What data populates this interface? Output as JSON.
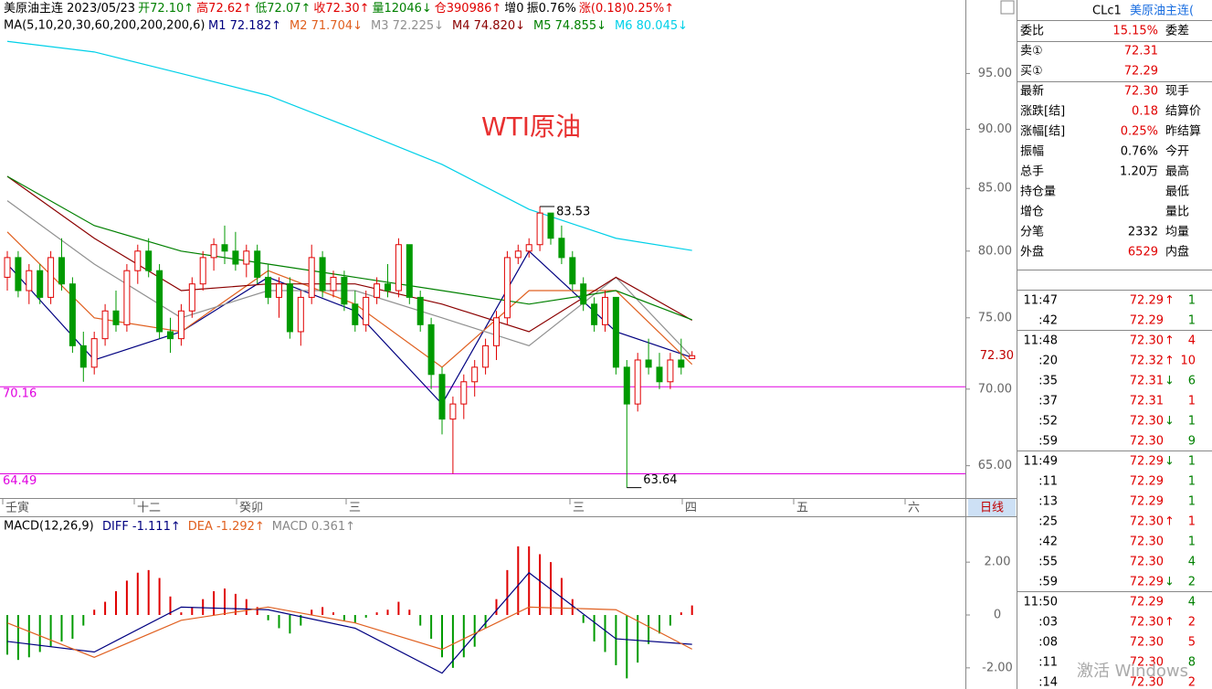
{
  "header": {
    "segments": [
      {
        "text": "美原油主连  2023/05/23",
        "color": "#000000"
      },
      {
        "text": "开72.10↑",
        "color": "#008000"
      },
      {
        "text": "高72.62↑",
        "color": "#e00000"
      },
      {
        "text": "低72.07↑",
        "color": "#008000"
      },
      {
        "text": "收72.30↑",
        "color": "#e00000"
      },
      {
        "text": "量12046↓",
        "color": "#008000"
      },
      {
        "text": "仓390986↑",
        "color": "#e00000"
      },
      {
        "text": "增0",
        "color": "#000000"
      },
      {
        "text": "振0.76%",
        "color": "#000000"
      },
      {
        "text": "涨(0.18)0.25%↑",
        "color": "#e00000"
      }
    ],
    "ma_title": "MA(5,10,20,30,60,200,200,200,6)"
  },
  "chart_data": {
    "type": "candlestick",
    "annotation": "WTI原油",
    "log": true,
    "ylim": [
      63,
      102
    ],
    "yticks": [
      {
        "value": 95,
        "label": "95.00"
      },
      {
        "value": 90,
        "label": "90.00"
      },
      {
        "value": 85,
        "label": "85.00"
      },
      {
        "value": 80,
        "label": "80.00"
      },
      {
        "value": 75,
        "label": "75.00"
      },
      {
        "value": 70,
        "label": "70.00"
      },
      {
        "value": 65,
        "label": "65.00"
      }
    ],
    "up_color": "#e00000",
    "down_color": "#009a00",
    "ohlc": [
      [
        78,
        80,
        77,
        79.5
      ],
      [
        79.5,
        80,
        76.5,
        77
      ],
      [
        77,
        79,
        76,
        78.5
      ],
      [
        78.5,
        79,
        76,
        76.5
      ],
      [
        76.5,
        80,
        76,
        79.5
      ],
      [
        79.5,
        81,
        77,
        77.5
      ],
      [
        77.5,
        78,
        72.5,
        73
      ],
      [
        73,
        74,
        70.5,
        71.5
      ],
      [
        71.5,
        74,
        71,
        73.5
      ],
      [
        73.5,
        76,
        73,
        75.5
      ],
      [
        75.5,
        77,
        74,
        74.5
      ],
      [
        74.5,
        79,
        74,
        78.5
      ],
      [
        78.5,
        80.5,
        77.5,
        80
      ],
      [
        80,
        81,
        78,
        78.5
      ],
      [
        78.5,
        79,
        73.5,
        74
      ],
      [
        74,
        75,
        72.5,
        73.5
      ],
      [
        73.5,
        76,
        73,
        75.5
      ],
      [
        75.5,
        78,
        75,
        77.5
      ],
      [
        77.5,
        80,
        77,
        79.5
      ],
      [
        79.5,
        81,
        78.5,
        80.5
      ],
      [
        80.5,
        82,
        79,
        80
      ],
      [
        80,
        81.5,
        78.5,
        79
      ],
      [
        79,
        80.5,
        78,
        80
      ],
      [
        80,
        80.5,
        77.5,
        78
      ],
      [
        78,
        79,
        76,
        76.5
      ],
      [
        76.5,
        78,
        75,
        77.5
      ],
      [
        77.5,
        78,
        73.5,
        74
      ],
      [
        74,
        77,
        73,
        76.5
      ],
      [
        76.5,
        80.5,
        76,
        79.5
      ],
      [
        79.5,
        80,
        76.5,
        77
      ],
      [
        77,
        78.5,
        76.5,
        78
      ],
      [
        78,
        78.5,
        75.5,
        76
      ],
      [
        76,
        77,
        74,
        74.5
      ],
      [
        74.5,
        77,
        74,
        76.5
      ],
      [
        76.5,
        78,
        76,
        77.5
      ],
      [
        77.5,
        79,
        76.5,
        77
      ],
      [
        77,
        81,
        76.5,
        80.5
      ],
      [
        80.5,
        80.5,
        76,
        76.5
      ],
      [
        76.5,
        77,
        74,
        74.5
      ],
      [
        74.5,
        75,
        70,
        71
      ],
      [
        71,
        71.5,
        67,
        68
      ],
      [
        68,
        69.5,
        64.5,
        69
      ],
      [
        69,
        71,
        68,
        70.5
      ],
      [
        70.5,
        72,
        69.5,
        71.5
      ],
      [
        71.5,
        73.5,
        71,
        73
      ],
      [
        73,
        75.5,
        72,
        75
      ],
      [
        75,
        80,
        74.5,
        79.5
      ],
      [
        79.5,
        80.5,
        79,
        80
      ],
      [
        80,
        81,
        79.5,
        80.5
      ],
      [
        80.5,
        83.53,
        80,
        83
      ],
      [
        83,
        83,
        80.5,
        81
      ],
      [
        81,
        82,
        79,
        79.5
      ],
      [
        79.5,
        80,
        77,
        77.5
      ],
      [
        77.5,
        78,
        75.5,
        76
      ],
      [
        76,
        76.5,
        74,
        74.5
      ],
      [
        74.5,
        77,
        74,
        76.5
      ],
      [
        76.5,
        76.5,
        71,
        71.5
      ],
      [
        71.5,
        72,
        63.64,
        69
      ],
      [
        69,
        72.5,
        68.5,
        72
      ],
      [
        72,
        73.5,
        71,
        71.5
      ],
      [
        71.5,
        72.5,
        70,
        70.5
      ],
      [
        70.5,
        72.5,
        70,
        72
      ],
      [
        72,
        73.5,
        71,
        71.5
      ],
      [
        72.1,
        72.62,
        72.07,
        72.3
      ]
    ],
    "high_label": "83.53",
    "low_label": "63.64",
    "last_label": "72.30",
    "hlines": [
      {
        "value": 70.16,
        "label": "70.16",
        "color": "#e000e0"
      },
      {
        "value": 64.49,
        "label": "64.49",
        "color": "#e000e0"
      }
    ],
    "ma_index": [
      0,
      8,
      16,
      24,
      32,
      40,
      48,
      56,
      63
    ],
    "series": [
      {
        "name": "M1 72.182↑",
        "color": "#000080",
        "values": [
          79,
          72,
          74,
          78,
          75.5,
          69,
          80,
          74,
          72.18
        ]
      },
      {
        "name": "M2 71.704↓",
        "color": "#e06020",
        "values": [
          81.5,
          75,
          74,
          78.5,
          76,
          71.5,
          77,
          77,
          71.7
        ]
      },
      {
        "name": "M3 72.225↓",
        "color": "#909090",
        "values": [
          84,
          79,
          75,
          77,
          77,
          75,
          73,
          78,
          72.2
        ]
      },
      {
        "name": "M4 74.820↓",
        "color": "#8b0000",
        "values": [
          86,
          81,
          77,
          77.5,
          77.5,
          76,
          74,
          78,
          74.82
        ]
      },
      {
        "name": "M5 74.855↓",
        "color": "#008000",
        "values": [
          86,
          82,
          80,
          79,
          78,
          77,
          76,
          77,
          74.86
        ]
      },
      {
        "name": "M6 80.045↓",
        "color": "#00d0e8",
        "values": [
          98,
          97,
          95,
          93,
          90,
          87,
          83.3,
          81,
          80.05
        ]
      }
    ],
    "date_labels": [
      "壬寅",
      "十二",
      "癸卯",
      "三",
      "三",
      "四",
      "五",
      "六"
    ],
    "period": "日线"
  },
  "macd_data": {
    "type": "macd",
    "title": "MACD(12,26,9)",
    "ylim": [
      -2.8,
      3.7
    ],
    "yticks": [
      {
        "value": 2,
        "label": "2.00"
      },
      0,
      {
        "value": -2,
        "label": "-2.00"
      }
    ],
    "hist": [
      -1.5,
      -1.7,
      -1.6,
      -1.4,
      -1.2,
      -1,
      -0.9,
      -0.4,
      0.2,
      0.5,
      0.9,
      1.3,
      1.6,
      1.7,
      1.4,
      0.7,
      0.1,
      0.3,
      0.6,
      0.9,
      1,
      0.8,
      0.6,
      0.3,
      -0.2,
      -0.5,
      -0.7,
      -0.4,
      0.2,
      0.3,
      0.1,
      -0.2,
      -0.3,
      -0.1,
      0.1,
      0.2,
      0.5,
      0.2,
      -0.4,
      -0.9,
      -1.6,
      -2,
      -1.6,
      -1.2,
      -0.5,
      0.6,
      1.7,
      2.6,
      2.6,
      2.3,
      2,
      1.4,
      0.6,
      -0.3,
      -1,
      -1.4,
      -1.9,
      -2.4,
      -1.8,
      -1.1,
      -0.7,
      -0.4,
      0.1,
      0.361
    ],
    "hist_label": "MACD 0.361↑",
    "hist_color_up": "#e00000",
    "hist_color_down": "#009a00",
    "series": [
      {
        "name": "DIFF -1.111↑",
        "color": "#000080",
        "values": [
          -1,
          -1.4,
          0.3,
          0.2,
          -0.5,
          -2.2,
          1.6,
          -0.9,
          -1.111
        ]
      },
      {
        "name": "DEA -1.292↑",
        "color": "#e06020",
        "values": [
          -0.3,
          -1.6,
          -0.2,
          0.3,
          -0.3,
          -1.3,
          0.3,
          0.2,
          -1.292
        ]
      }
    ]
  },
  "quote": {
    "code": "CLc1",
    "name": "美原油主连(",
    "rows": [
      [
        "委比",
        "15.15%",
        "委差"
      ],
      [
        "卖①",
        "72.31"
      ],
      [
        "买①",
        "72.29"
      ],
      [
        "最新",
        "72.30",
        "现手"
      ],
      [
        "涨跌[结]",
        "0.18",
        "结算价"
      ],
      [
        "涨幅[结]",
        "0.25%",
        "昨结算"
      ],
      [
        "振幅",
        "0.76%",
        "今开"
      ],
      [
        "总手",
        "1.20万",
        "最高"
      ],
      [
        "持仓量",
        "最低"
      ],
      [
        "增仓",
        "量比"
      ],
      [
        "分笔",
        "2332",
        "均量"
      ],
      [
        "外盘",
        "6529",
        "内盘"
      ]
    ],
    "ticks": [
      {
        "time": "11:47",
        "price": "72.29",
        "arrow": "↑",
        "volume": "1",
        "color": "#008000"
      },
      {
        "time": ":42",
        "price": "72.29",
        "volume": "1",
        "color": "#008000"
      },
      {
        "time": "11:48",
        "price": "72.30",
        "arrow": "↑",
        "volume": "4",
        "color": "#e00000"
      },
      {
        "time": ":20",
        "price": "72.32",
        "arrow": "↑",
        "volume": "10",
        "color": "#e00000"
      },
      {
        "time": ":35",
        "price": "72.31",
        "arrow": "↓",
        "volume": "6",
        "color": "#008000"
      },
      {
        "time": ":37",
        "price": "72.31",
        "volume": "1",
        "color": "#e00000"
      },
      {
        "time": ":52",
        "price": "72.30",
        "arrow": "↓",
        "volume": "1",
        "color": "#008000"
      },
      {
        "time": ":59",
        "price": "72.30",
        "volume": "9",
        "color": "#008000"
      },
      {
        "time": "11:49",
        "price": "72.29",
        "arrow": "↓",
        "volume": "1",
        "color": "#008000"
      },
      {
        "time": ":11",
        "price": "72.29",
        "volume": "1",
        "color": "#008000"
      },
      {
        "time": ":13",
        "price": "72.29",
        "volume": "1",
        "color": "#008000"
      },
      {
        "time": ":25",
        "price": "72.30",
        "arrow": "↑",
        "volume": "1",
        "color": "#e00000"
      },
      {
        "time": ":42",
        "price": "72.30",
        "volume": "1",
        "color": "#008000"
      },
      {
        "time": ":55",
        "price": "72.30",
        "volume": "4",
        "color": "#008000"
      },
      {
        "time": ":59",
        "price": "72.29",
        "arrow": "↓",
        "volume": "2",
        "color": "#008000"
      },
      {
        "time": "11:50",
        "price": "72.29",
        "volume": "4",
        "color": "#008000"
      },
      {
        "time": ":03",
        "price": "72.30",
        "arrow": "↑",
        "volume": "2",
        "color": "#e00000"
      },
      {
        "time": ":08",
        "price": "72.30",
        "volume": "5",
        "color": "#e00000"
      },
      {
        "time": ":11",
        "price": "72.30",
        "volume": "8",
        "color": "#008000"
      },
      {
        "time": ":14",
        "price": "72.30",
        "volume": "2",
        "color": "#e00000"
      }
    ]
  },
  "watermark": "激活 Windows"
}
